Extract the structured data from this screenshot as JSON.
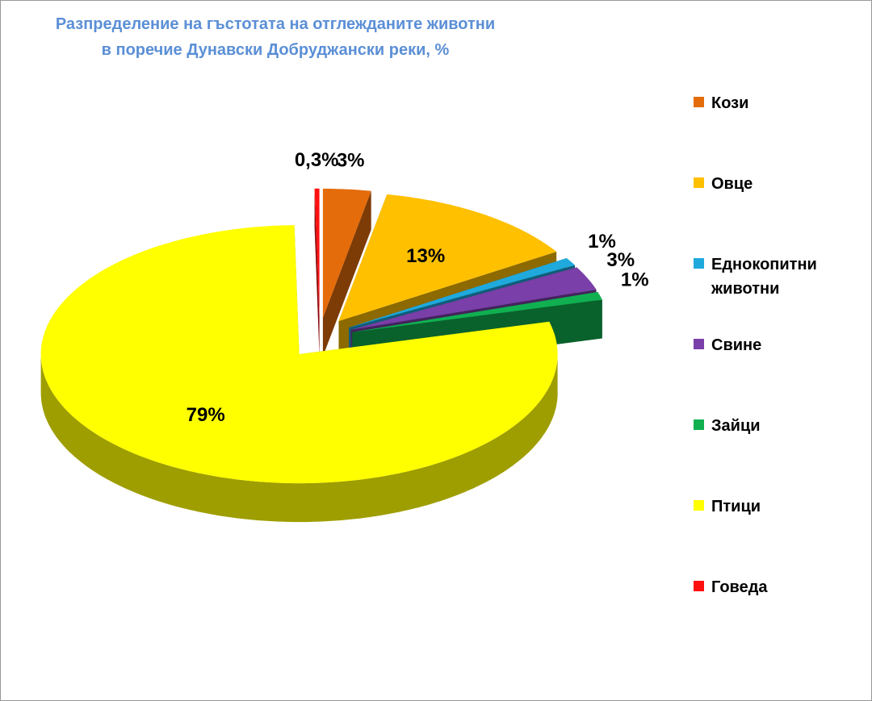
{
  "chart_data": {
    "type": "pie",
    "title": [
      "Разпределение на гъстотата на отглежданите животни",
      "в поречие Дунавски Добруджански реки, %"
    ],
    "categories": [
      "Кози",
      "Овце",
      "Еднокопитни животни",
      "Свине",
      "Зайци",
      "Птици",
      "Говеда"
    ],
    "values": [
      3,
      13,
      1,
      3,
      1,
      79,
      0.3
    ],
    "value_labels": [
      "3%",
      "13%",
      "1%",
      "3%",
      "1%",
      "79%",
      "0,3%"
    ],
    "colors": [
      "#e46c0a",
      "#ffc000",
      "#1fa9dc",
      "#7a3fa8",
      "#10b050",
      "#ffff00",
      "#ff1010"
    ],
    "legend": "right"
  }
}
